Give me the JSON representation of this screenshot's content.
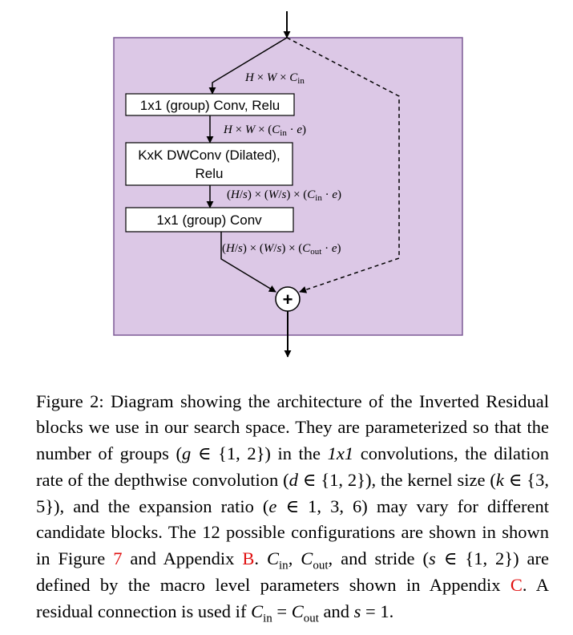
{
  "diagram": {
    "boxes": [
      {
        "lines": [
          "1x1 (group) Conv, Relu"
        ]
      },
      {
        "lines": [
          "KxK DWConv (Dilated),",
          "Relu"
        ]
      },
      {
        "lines": [
          "1x1 (group) Conv"
        ]
      }
    ],
    "plus_symbol": "+",
    "colors": {
      "block_fill": "#dcc8e6",
      "block_border": "#7d5a96"
    },
    "labels": {
      "l1": {
        "a": "H",
        "b": " × ",
        "c": "W",
        "d": " × ",
        "e": "C",
        "f": "in"
      },
      "l2": {
        "a": "H",
        "b": " × ",
        "c": "W",
        "d": " × (",
        "e": "C",
        "f": "in",
        "g": " · ",
        "h": "e",
        "i": ")"
      },
      "l3": {
        "a": "(",
        "b": "H",
        "c": "/",
        "d": "s",
        "e": ") × (",
        "f": "W",
        "g": "/",
        "h": "s",
        "i": ") × (",
        "j": "C",
        "k": "in",
        "l": " · ",
        "m": "e",
        "n": ")"
      },
      "l4": {
        "a": "(",
        "b": "H",
        "c": "/",
        "d": "s",
        "e": ") × (",
        "f": "W",
        "g": "/",
        "h": "s",
        "i": ") × (",
        "j": "C",
        "k": "out",
        "l": " · ",
        "m": "e",
        "n": ")"
      }
    }
  },
  "caption": {
    "t1": "Figure 2: Diagram showing the architecture of the Inverted Residual blocks we use in our search space. They are parameterized so that the number of groups (",
    "m1": "g",
    "t2": " ∈ {1, 2}) in the ",
    "m2": "1x1",
    "t3": " convolutions, the dilation rate of the depthwise convolution (",
    "m3": "d",
    "t4": " ∈ {1, 2}), the kernel size (",
    "m4": "k",
    "t5": " ∈ {3, 5}), and the expansion ratio (",
    "m5": "e",
    "t6": " ∈ 1, 3, 6) may vary for different candidate blocks. The 12 possible configurations are shown in shown in Figure ",
    "ref1": "7",
    "t7": " and Appendix ",
    "ref2": "B",
    "t8": ". ",
    "c1": "C",
    "c1sub": "in",
    "t9": ", ",
    "c2": "C",
    "c2sub": "out",
    "t10": ", and stride (",
    "m6": "s",
    "t11": " ∈ {1, 2}) are defined by the macro level parameters shown in Appendix ",
    "ref3": "C",
    "t12": ". A residual connection is used if ",
    "c3": "C",
    "c3sub": "in",
    "t13": " = ",
    "c4": "C",
    "c4sub": "out",
    "t14": " and ",
    "m7": "s",
    "t15": " = 1."
  }
}
